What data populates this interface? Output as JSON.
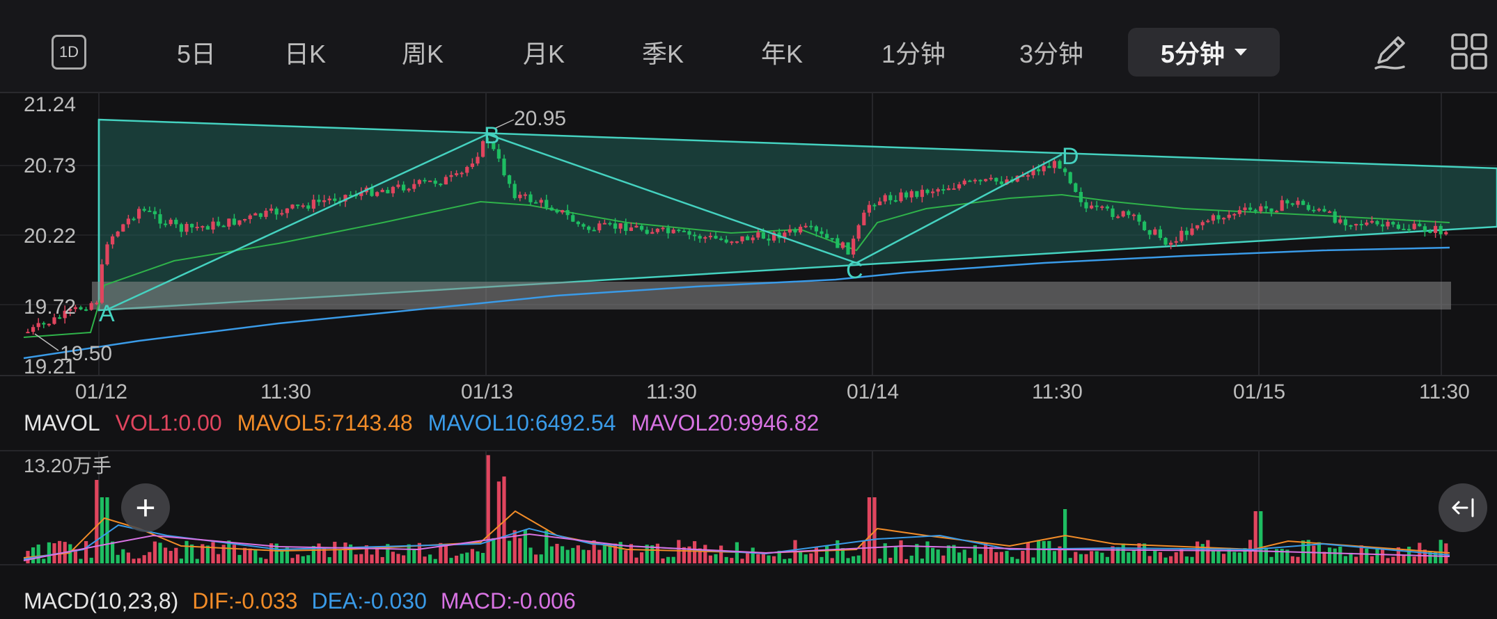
{
  "colors": {
    "up": "#e0455e",
    "down": "#1ebd62",
    "accent_teal": "#45d2c0",
    "ma_green": "#2fb34a",
    "ma_blue": "#3a9be8",
    "vol_ma5": "#f28c28",
    "vol_ma10": "#3a9be8",
    "vol_ma20": "#d873e3",
    "background": "#121214"
  },
  "tabs": [
    {
      "label": "1D",
      "icon": "calendar-1d-icon"
    },
    {
      "label": "5日"
    },
    {
      "label": "日K"
    },
    {
      "label": "周K"
    },
    {
      "label": "月K"
    },
    {
      "label": "季K"
    },
    {
      "label": "年K"
    },
    {
      "label": "1分钟"
    },
    {
      "label": "3分钟"
    },
    {
      "label": "5分钟",
      "active": true
    }
  ],
  "toolbar_icons": [
    "draw-pencil-icon",
    "grid-layout-icon"
  ],
  "price_axis": {
    "labels": [
      "21.24",
      "20.73",
      "20.22",
      "19.72",
      "19.21"
    ]
  },
  "time_axis": {
    "labels": [
      "01/12",
      "11:30",
      "01/13",
      "11:30",
      "01/14",
      "11:30",
      "01/15",
      "11:30"
    ]
  },
  "annotations": {
    "points": [
      "A",
      "B",
      "C",
      "D"
    ],
    "high_value": "20.95",
    "low_value": "19.50"
  },
  "volume_legend": {
    "name": "MAVOL",
    "vol1": "VOL1:0.00",
    "mavol5": "MAVOL5:7143.48",
    "mavol10": "MAVOL10:6492.54",
    "mavol20": "MAVOL20:9946.82"
  },
  "volume_unit": "13.20万手",
  "macd_legend": {
    "name": "MACD(10,23,8)",
    "dif": "DIF:-0.033",
    "dea": "DEA:-0.030",
    "macd": "MACD:-0.006"
  }
}
